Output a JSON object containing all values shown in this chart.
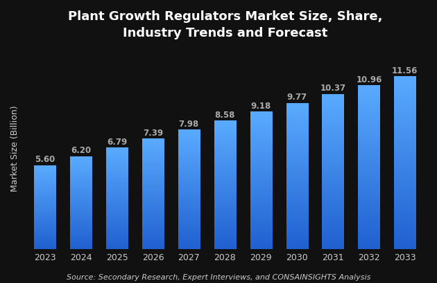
{
  "title": "Plant Growth Regulators Market Size, Share,\nIndustry Trends and Forecast",
  "ylabel": "Market Size (Billion)",
  "source_text": "Source: Secondary Research, Expert Interviews, and CONSAINSIGHTS Analysis",
  "categories": [
    "2023",
    "2024",
    "2025",
    "2026",
    "2027",
    "2028",
    "2029",
    "2030",
    "2031",
    "2032",
    "2033"
  ],
  "values": [
    5.6,
    6.2,
    6.79,
    7.39,
    7.98,
    8.58,
    9.18,
    9.77,
    10.37,
    10.96,
    11.56
  ],
  "bar_color": "#3d85f5",
  "background_color": "#111111",
  "text_color": "#cccccc",
  "label_color": "#aaaaaa",
  "title_color": "#ffffff",
  "title_fontsize": 13,
  "label_fontsize": 8.5,
  "tick_fontsize": 9,
  "source_fontsize": 8,
  "ylim": [
    0,
    13.5
  ],
  "bar_width": 0.6
}
